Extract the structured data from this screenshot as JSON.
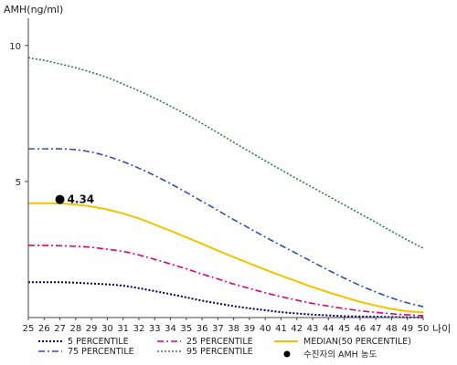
{
  "chart_data": {
    "type": "line",
    "ylabel": "AMH(ng/ml)",
    "xlabel": "나이",
    "x": [
      25,
      26,
      27,
      28,
      29,
      30,
      31,
      32,
      33,
      34,
      35,
      36,
      37,
      38,
      39,
      40,
      41,
      42,
      43,
      44,
      45,
      46,
      47,
      48,
      49,
      50
    ],
    "x_tick_labels": [
      "25",
      "26",
      "27",
      "28",
      "29",
      "30",
      "31",
      "32",
      "33",
      "34",
      "35",
      "36",
      "37",
      "38",
      "39",
      "40",
      "41",
      "42",
      "43",
      "44",
      "45",
      "46",
      "47",
      "48",
      "49",
      "50"
    ],
    "ylim": [
      0,
      11
    ],
    "y_ticks": [
      5,
      10
    ],
    "y_tick_labels": [
      "5",
      "10"
    ],
    "series": [
      {
        "key": "p5",
        "name": "5 PERCENTILE",
        "color": "#000066",
        "dash": "2,2",
        "width": 2,
        "values": [
          1.3,
          1.3,
          1.3,
          1.28,
          1.25,
          1.22,
          1.17,
          1.08,
          0.97,
          0.86,
          0.74,
          0.62,
          0.52,
          0.42,
          0.34,
          0.27,
          0.2,
          0.15,
          0.11,
          0.08,
          0.05,
          0.04,
          0.03,
          0.02,
          0.01,
          0.01
        ]
      },
      {
        "key": "p25",
        "name": "25 PERCENTILE",
        "color": "#e0007a",
        "dash": "7,3,2,3",
        "width": 1.6,
        "values": [
          2.65,
          2.65,
          2.64,
          2.62,
          2.58,
          2.51,
          2.43,
          2.3,
          2.14,
          1.97,
          1.79,
          1.6,
          1.42,
          1.23,
          1.07,
          0.91,
          0.77,
          0.64,
          0.52,
          0.42,
          0.33,
          0.25,
          0.19,
          0.14,
          0.1,
          0.07
        ]
      },
      {
        "key": "p50",
        "name": "MEDIAN(50 PERCENTILE)",
        "color": "#f0c400",
        "dash": "",
        "width": 2,
        "values": [
          4.2,
          4.2,
          4.19,
          4.15,
          4.08,
          3.97,
          3.82,
          3.64,
          3.42,
          3.19,
          2.95,
          2.71,
          2.46,
          2.22,
          1.99,
          1.76,
          1.54,
          1.33,
          1.12,
          0.93,
          0.75,
          0.58,
          0.44,
          0.32,
          0.23,
          0.2
        ]
      },
      {
        "key": "p75",
        "name": "75 PERCENTILE",
        "color": "#2a4fb8",
        "dash": "7,3,2,3",
        "width": 1.6,
        "values": [
          6.2,
          6.2,
          6.2,
          6.17,
          6.08,
          5.93,
          5.73,
          5.49,
          5.22,
          4.92,
          4.6,
          4.27,
          3.94,
          3.6,
          3.28,
          2.96,
          2.65,
          2.35,
          2.04,
          1.74,
          1.45,
          1.18,
          0.94,
          0.72,
          0.54,
          0.4
        ]
      },
      {
        "key": "p95",
        "name": "95 PERCENTILE",
        "color": "#2e7d4f",
        "dash": "2,2",
        "width": 1.6,
        "values": [
          9.55,
          9.45,
          9.32,
          9.18,
          9.01,
          8.82,
          8.58,
          8.33,
          8.06,
          7.77,
          7.46,
          7.13,
          6.79,
          6.44,
          6.1,
          5.76,
          5.43,
          5.1,
          4.78,
          4.46,
          4.14,
          3.82,
          3.5,
          3.17,
          2.85,
          2.55
        ]
      }
    ],
    "marker": {
      "name": "수진자의 AMH 농도",
      "x": 27,
      "y": 4.34,
      "label": "4.34",
      "color": "#000000"
    },
    "legend": {
      "placement": "bottom",
      "items": [
        {
          "key": "p5",
          "label": "5 PERCENTILE"
        },
        {
          "key": "p25",
          "label": "25 PERCENTILE"
        },
        {
          "key": "p50",
          "label": "MEDIAN(50 PERCENTILE)"
        },
        {
          "key": "p75",
          "label": "75 PERCENTILE"
        },
        {
          "key": "p95",
          "label": "95 PERCENTILE"
        },
        {
          "key": "marker",
          "label": "수진자의 AMH 농도"
        }
      ]
    }
  }
}
